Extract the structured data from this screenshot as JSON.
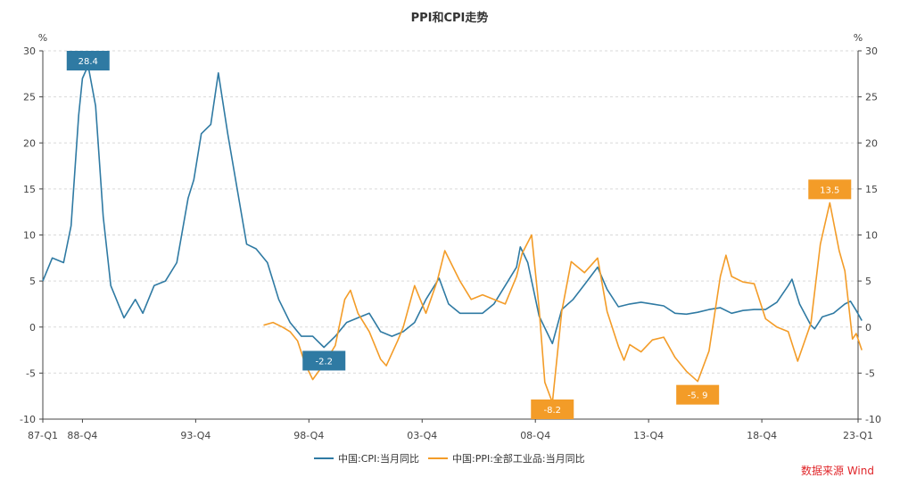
{
  "chart_data": {
    "type": "line",
    "title": "PPI和CPI走势",
    "y_unit_left": "%",
    "y_unit_right": "%",
    "ylim": [
      -10,
      30
    ],
    "y_ticks": [
      -10,
      -5,
      0,
      5,
      10,
      15,
      20,
      25,
      30
    ],
    "x_ticks": [
      "87-Q1",
      "88-Q4",
      "93-Q4",
      "98-Q4",
      "03-Q4",
      "08-Q4",
      "13-Q4",
      "18-Q4",
      "23-Q1"
    ],
    "grid": true,
    "legend_position": "bottom",
    "series": [
      {
        "name": "中国:CPI:当月同比",
        "color": "#2f7aa3",
        "points": [
          [
            "1987-01",
            5.0
          ],
          [
            "1987-06",
            7.5
          ],
          [
            "1987-12",
            7.0
          ],
          [
            "1988-04",
            11.0
          ],
          [
            "1988-08",
            23.0
          ],
          [
            "1988-10",
            27.0
          ],
          [
            "1989-01",
            28.4
          ],
          [
            "1989-05",
            24.0
          ],
          [
            "1989-09",
            12.0
          ],
          [
            "1990-01",
            4.5
          ],
          [
            "1990-05",
            2.5
          ],
          [
            "1990-08",
            1.0
          ],
          [
            "1991-02",
            3.0
          ],
          [
            "1991-06",
            1.5
          ],
          [
            "1991-12",
            4.5
          ],
          [
            "1992-06",
            5.0
          ],
          [
            "1992-12",
            7.0
          ],
          [
            "1993-06",
            14.0
          ],
          [
            "1993-09",
            16.0
          ],
          [
            "1994-01",
            21.0
          ],
          [
            "1994-06",
            22.0
          ],
          [
            "1994-10",
            27.6
          ],
          [
            "1995-03",
            21.0
          ],
          [
            "1995-08",
            15.0
          ],
          [
            "1996-01",
            9.0
          ],
          [
            "1996-06",
            8.5
          ],
          [
            "1996-12",
            7.0
          ],
          [
            "1997-06",
            3.0
          ],
          [
            "1997-12",
            0.5
          ],
          [
            "1998-06",
            -1.0
          ],
          [
            "1998-12",
            -1.0
          ],
          [
            "1999-06",
            -2.2
          ],
          [
            "1999-12",
            -1.0
          ],
          [
            "2000-06",
            0.5
          ],
          [
            "2000-12",
            1.0
          ],
          [
            "2001-06",
            1.5
          ],
          [
            "2001-12",
            -0.5
          ],
          [
            "2002-06",
            -1.0
          ],
          [
            "2002-12",
            -0.5
          ],
          [
            "2003-06",
            0.5
          ],
          [
            "2003-12",
            3.0
          ],
          [
            "2004-07",
            5.3
          ],
          [
            "2004-12",
            2.5
          ],
          [
            "2005-06",
            1.5
          ],
          [
            "2005-12",
            1.5
          ],
          [
            "2006-06",
            1.5
          ],
          [
            "2006-12",
            2.5
          ],
          [
            "2007-06",
            4.5
          ],
          [
            "2007-12",
            6.5
          ],
          [
            "2008-02",
            8.7
          ],
          [
            "2008-06",
            7.0
          ],
          [
            "2008-12",
            1.2
          ],
          [
            "2009-07",
            -1.8
          ],
          [
            "2009-12",
            1.9
          ],
          [
            "2010-06",
            3.0
          ],
          [
            "2010-12",
            4.6
          ],
          [
            "2011-07",
            6.5
          ],
          [
            "2011-12",
            4.1
          ],
          [
            "2012-06",
            2.2
          ],
          [
            "2012-12",
            2.5
          ],
          [
            "2013-06",
            2.7
          ],
          [
            "2013-12",
            2.5
          ],
          [
            "2014-06",
            2.3
          ],
          [
            "2014-12",
            1.5
          ],
          [
            "2015-06",
            1.4
          ],
          [
            "2015-12",
            1.6
          ],
          [
            "2016-06",
            1.9
          ],
          [
            "2016-12",
            2.1
          ],
          [
            "2017-06",
            1.5
          ],
          [
            "2017-12",
            1.8
          ],
          [
            "2018-06",
            1.9
          ],
          [
            "2018-12",
            1.9
          ],
          [
            "2019-06",
            2.7
          ],
          [
            "2019-12",
            4.5
          ],
          [
            "2020-02",
            5.2
          ],
          [
            "2020-06",
            2.5
          ],
          [
            "2020-12",
            0.2
          ],
          [
            "2021-02",
            -0.2
          ],
          [
            "2021-06",
            1.1
          ],
          [
            "2021-12",
            1.5
          ],
          [
            "2022-06",
            2.5
          ],
          [
            "2022-09",
            2.8
          ],
          [
            "2022-12",
            1.8
          ],
          [
            "2023-03",
            0.7
          ]
        ]
      },
      {
        "name": "中国:PPI:全部工业品:当月同比",
        "color": "#f39c28",
        "points": [
          [
            "1996-10",
            0.2
          ],
          [
            "1997-03",
            0.5
          ],
          [
            "1997-08",
            0.0
          ],
          [
            "1997-12",
            -0.5
          ],
          [
            "1998-04",
            -1.5
          ],
          [
            "1998-08",
            -4.0
          ],
          [
            "1998-12",
            -5.7
          ],
          [
            "1999-06",
            -4.0
          ],
          [
            "1999-12",
            -2.0
          ],
          [
            "2000-05",
            3.0
          ],
          [
            "2000-08",
            4.0
          ],
          [
            "2000-12",
            1.5
          ],
          [
            "2001-06",
            -0.5
          ],
          [
            "2001-12",
            -3.5
          ],
          [
            "2002-03",
            -4.2
          ],
          [
            "2002-09",
            -1.5
          ],
          [
            "2002-12",
            0.0
          ],
          [
            "2003-06",
            4.5
          ],
          [
            "2003-12",
            1.5
          ],
          [
            "2004-06",
            5.0
          ],
          [
            "2004-10",
            8.3
          ],
          [
            "2005-06",
            5.0
          ],
          [
            "2005-12",
            3.0
          ],
          [
            "2006-06",
            3.5
          ],
          [
            "2006-12",
            3.0
          ],
          [
            "2007-06",
            2.5
          ],
          [
            "2007-12",
            5.5
          ],
          [
            "2008-03",
            8.0
          ],
          [
            "2008-08",
            10.0
          ],
          [
            "2008-12",
            2.0
          ],
          [
            "2009-03",
            -6.0
          ],
          [
            "2009-07",
            -8.2
          ],
          [
            "2009-12",
            1.7
          ],
          [
            "2010-05",
            7.1
          ],
          [
            "2010-12",
            5.9
          ],
          [
            "2011-07",
            7.5
          ],
          [
            "2011-12",
            1.7
          ],
          [
            "2012-06",
            -2.1
          ],
          [
            "2012-09",
            -3.6
          ],
          [
            "2012-12",
            -1.9
          ],
          [
            "2013-06",
            -2.7
          ],
          [
            "2013-12",
            -1.4
          ],
          [
            "2014-06",
            -1.1
          ],
          [
            "2014-12",
            -3.3
          ],
          [
            "2015-06",
            -4.8
          ],
          [
            "2015-12",
            -5.9
          ],
          [
            "2016-06",
            -2.6
          ],
          [
            "2016-12",
            5.5
          ],
          [
            "2017-03",
            7.8
          ],
          [
            "2017-06",
            5.5
          ],
          [
            "2017-12",
            4.9
          ],
          [
            "2018-06",
            4.7
          ],
          [
            "2018-12",
            0.9
          ],
          [
            "2019-06",
            0.0
          ],
          [
            "2019-12",
            -0.5
          ],
          [
            "2020-05",
            -3.7
          ],
          [
            "2020-12",
            0.4
          ],
          [
            "2021-05",
            9.0
          ],
          [
            "2021-10",
            13.5
          ],
          [
            "2022-03",
            8.3
          ],
          [
            "2022-06",
            6.1
          ],
          [
            "2022-10",
            -1.3
          ],
          [
            "2022-12",
            -0.7
          ],
          [
            "2023-03",
            -2.5
          ]
        ]
      }
    ],
    "data_labels": [
      {
        "text": "28.4",
        "date": "1989-01",
        "value": 28.4,
        "series": 0
      },
      {
        "text": "-2.2",
        "date": "1999-06",
        "value": -2.2,
        "series": 0
      },
      {
        "text": "-8.2",
        "date": "2009-07",
        "value": -8.2,
        "series": 1
      },
      {
        "text": "-5. 9",
        "date": "2015-12",
        "value": -5.9,
        "series": 1
      },
      {
        "text": "13.5",
        "date": "2021-10",
        "value": 13.5,
        "series": 1
      }
    ],
    "source": "数据来源  Wind"
  }
}
